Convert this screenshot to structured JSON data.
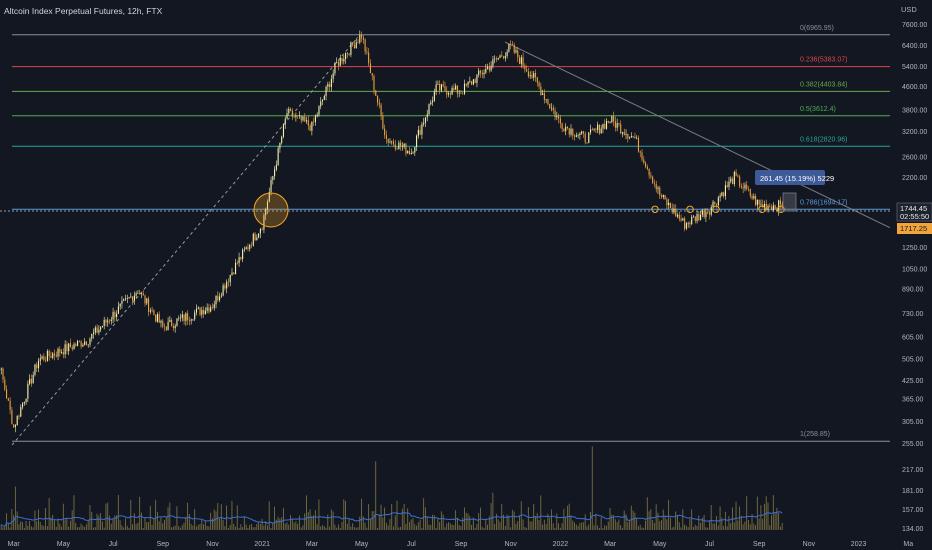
{
  "header": {
    "title": "Altcoin Index Perpetual Futures, 12h, FTX"
  },
  "price_axis": {
    "currency": "USD",
    "ticks": [
      "7600.00",
      "6400.00",
      "5400.00",
      "4600.00",
      "3800.00",
      "3200.00",
      "2600.00",
      "2200.00",
      "1250.00",
      "1050.00",
      "890.00",
      "730.00",
      "605.00",
      "505.00",
      "425.00",
      "365.00",
      "305.00",
      "255.00",
      "217.00",
      "181.00",
      "157.00",
      "134.00"
    ],
    "current_price": "1744.45",
    "countdown": "02:55:50",
    "low_marker": "1717.25"
  },
  "time_axis": {
    "labels": [
      "Mar",
      "May",
      "Jul",
      "Sep",
      "Nov",
      "2021",
      "Mar",
      "May",
      "Jul",
      "Sep",
      "Nov",
      "2022",
      "Mar",
      "May",
      "Jul",
      "Sep",
      "Nov",
      "2023",
      "Ma"
    ]
  },
  "fib_levels": [
    {
      "ratio": "0",
      "value": "6965.95",
      "color": "#8c8f99"
    },
    {
      "ratio": "0.236",
      "value": "5383.07",
      "color": "#e0444a"
    },
    {
      "ratio": "0.382",
      "value": "4403.84",
      "color": "#6aa84f"
    },
    {
      "ratio": "0.5",
      "value": "3612.4",
      "color": "#4caf50"
    },
    {
      "ratio": "0.618",
      "value": "2820.96",
      "color": "#26a69a"
    },
    {
      "ratio": "0.786",
      "value": "1694.17",
      "color": "#5b9bd5"
    },
    {
      "ratio": "1",
      "value": "258.85",
      "color": "#8c8f99"
    }
  ],
  "measure_label": "261.45 (15.19%) 5229",
  "colors": {
    "background": "#131722",
    "bull": "#f7f3b0",
    "bear": "#f2a33a",
    "volume_bar": "#8a7f45",
    "volume_ma": "#3b6fd4",
    "trend_line": "#9598a1",
    "highlight": "#f5a623"
  },
  "chart_data": {
    "type": "candlestick",
    "title": "Altcoin Index Perpetual Futures, 12h, FTX",
    "ylabel": "USD",
    "y_scale": "log",
    "ylim": [
      134,
      7600
    ],
    "approx_close_path": [
      {
        "date": "2020-02",
        "value": 700
      },
      {
        "date": "2020-03",
        "value": 290
      },
      {
        "date": "2020-04",
        "value": 500
      },
      {
        "date": "2020-06",
        "value": 590
      },
      {
        "date": "2020-08",
        "value": 880
      },
      {
        "date": "2020-09",
        "value": 650
      },
      {
        "date": "2020-11",
        "value": 780
      },
      {
        "date": "2020-12",
        "value": 1100
      },
      {
        "date": "2021-01",
        "value": 1500
      },
      {
        "date": "2021-02",
        "value": 3700
      },
      {
        "date": "2021-03",
        "value": 3300
      },
      {
        "date": "2021-04",
        "value": 5500
      },
      {
        "date": "2021-05",
        "value": 6965.95
      },
      {
        "date": "2021-06",
        "value": 3000
      },
      {
        "date": "2021-07",
        "value": 2700
      },
      {
        "date": "2021-08",
        "value": 4500
      },
      {
        "date": "2021-09",
        "value": 4400
      },
      {
        "date": "2021-11",
        "value": 6300
      },
      {
        "date": "2021-12",
        "value": 4800
      },
      {
        "date": "2022-01",
        "value": 3400
      },
      {
        "date": "2022-02",
        "value": 3000
      },
      {
        "date": "2022-03",
        "value": 3500
      },
      {
        "date": "2022-04",
        "value": 3000
      },
      {
        "date": "2022-05",
        "value": 1900
      },
      {
        "date": "2022-06",
        "value": 1500
      },
      {
        "date": "2022-07",
        "value": 1700
      },
      {
        "date": "2022-08",
        "value": 2200
      },
      {
        "date": "2022-09",
        "value": 1750
      },
      {
        "date": "2022-10",
        "value": 1744.45
      }
    ]
  }
}
